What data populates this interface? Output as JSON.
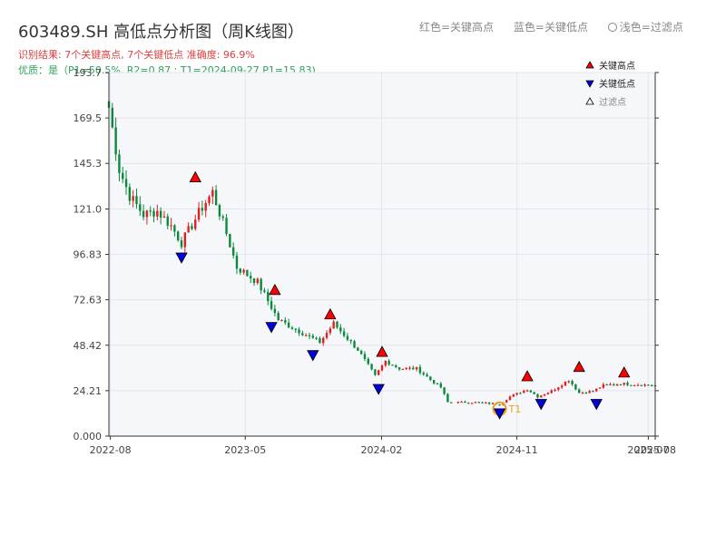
{
  "title": "603489.SH 高低点分析图（周K线图）",
  "subtitle_result": "识别结果: 7个关键高点, 7个关键低点  准确度: 96.9%",
  "subtitle_quality": "优质：是（P1=50.5%, R2=0.87 ; T1=2024-09-27 P1=15.83)",
  "header_legend": {
    "red": "红色=关键高点",
    "blue": "蓝色=关键低点",
    "light": "浅色=过滤点"
  },
  "chart_data": {
    "type": "candlestick",
    "title": "603489.SH 高低点分析图（周K线图）",
    "x_range": [
      "2022-07-29",
      "2025-08-08"
    ],
    "x_ticks": [
      {
        "date": "2022-08-01",
        "label": "2022-08"
      },
      {
        "date": "2023-05-01",
        "label": "2023-05"
      },
      {
        "date": "2024-02-01",
        "label": "2024-02"
      },
      {
        "date": "2024-11-01",
        "label": "2024-11"
      },
      {
        "date": "2025-07-25",
        "label": "2025-07"
      },
      {
        "date": "2025-08-08",
        "label": "2025-08"
      }
    ],
    "ylim": [
      0.0,
      193.7
    ],
    "y_ticks": [
      0.0,
      24.21,
      48.42,
      72.63,
      96.83,
      121.0,
      145.3,
      169.5,
      193.7
    ],
    "y_tick_labels": [
      "0.000",
      "24.21",
      "48.42",
      "72.63",
      "96.83",
      "121.0",
      "145.3",
      "169.5",
      "193.7"
    ],
    "grid": true,
    "colors": {
      "up": "#e02020",
      "down": "#0a8a3a",
      "high_marker": "#ff0000",
      "low_marker": "#0000dd",
      "filtered": "#f0a020"
    },
    "legend": {
      "placement": "top-right",
      "entries": [
        {
          "label": "关键高点",
          "marker": "triangle-up",
          "color": "#ff0000"
        },
        {
          "label": "关键低点",
          "marker": "triangle-down",
          "color": "#0000dd"
        },
        {
          "label": "过滤点",
          "marker": "triangle-up-hollow",
          "color": "#ffffff"
        }
      ]
    },
    "anchors": [
      [
        "2022-07-29",
        175
      ],
      [
        "2022-08-19",
        142
      ],
      [
        "2022-09-09",
        128
      ],
      [
        "2022-10-07",
        118
      ],
      [
        "2022-11-04",
        120
      ],
      [
        "2022-12-02",
        112
      ],
      [
        "2022-12-23",
        103
      ],
      [
        "2023-02-03",
        122
      ],
      [
        "2023-02-24",
        130
      ],
      [
        "2023-03-24",
        108
      ],
      [
        "2023-04-14",
        90
      ],
      [
        "2023-05-26",
        82
      ],
      [
        "2023-06-16",
        72
      ],
      [
        "2023-07-07",
        62
      ],
      [
        "2023-08-18",
        56
      ],
      [
        "2023-09-29",
        50
      ],
      [
        "2023-10-27",
        60
      ],
      [
        "2023-12-15",
        46
      ],
      [
        "2024-01-19",
        32
      ],
      [
        "2024-02-09",
        40
      ],
      [
        "2024-03-08",
        36
      ],
      [
        "2024-04-12",
        36
      ],
      [
        "2024-05-10",
        30
      ],
      [
        "2024-05-31",
        26
      ],
      [
        "2024-06-14",
        18
      ],
      [
        "2024-08-09",
        18
      ],
      [
        "2024-09-27",
        17
      ],
      [
        "2024-10-18",
        21
      ],
      [
        "2024-11-22",
        25
      ],
      [
        "2024-12-13",
        21
      ],
      [
        "2025-01-10",
        24
      ],
      [
        "2025-02-14",
        30
      ],
      [
        "2025-03-07",
        23
      ],
      [
        "2025-04-04",
        24
      ],
      [
        "2025-04-25",
        27
      ],
      [
        "2025-05-30",
        28
      ],
      [
        "2025-08-08",
        27
      ]
    ],
    "key_highs": [
      {
        "date": "2023-01-20",
        "value": 134
      },
      {
        "date": "2023-06-30",
        "value": 74
      },
      {
        "date": "2023-10-20",
        "value": 61
      },
      {
        "date": "2024-02-02",
        "value": 41
      },
      {
        "date": "2024-11-22",
        "value": 28
      },
      {
        "date": "2025-03-07",
        "value": 33
      },
      {
        "date": "2025-06-06",
        "value": 30
      }
    ],
    "key_lows": [
      {
        "date": "2022-12-23",
        "value": 99
      },
      {
        "date": "2023-06-23",
        "value": 62
      },
      {
        "date": "2023-09-15",
        "value": 47
      },
      {
        "date": "2024-01-26",
        "value": 29
      },
      {
        "date": "2024-09-27",
        "value": 16
      },
      {
        "date": "2024-12-20",
        "value": 21
      },
      {
        "date": "2025-04-11",
        "value": 21
      }
    ],
    "filtered_points": [
      {
        "date": "2024-09-27",
        "value": 16,
        "label": "T1"
      }
    ]
  }
}
